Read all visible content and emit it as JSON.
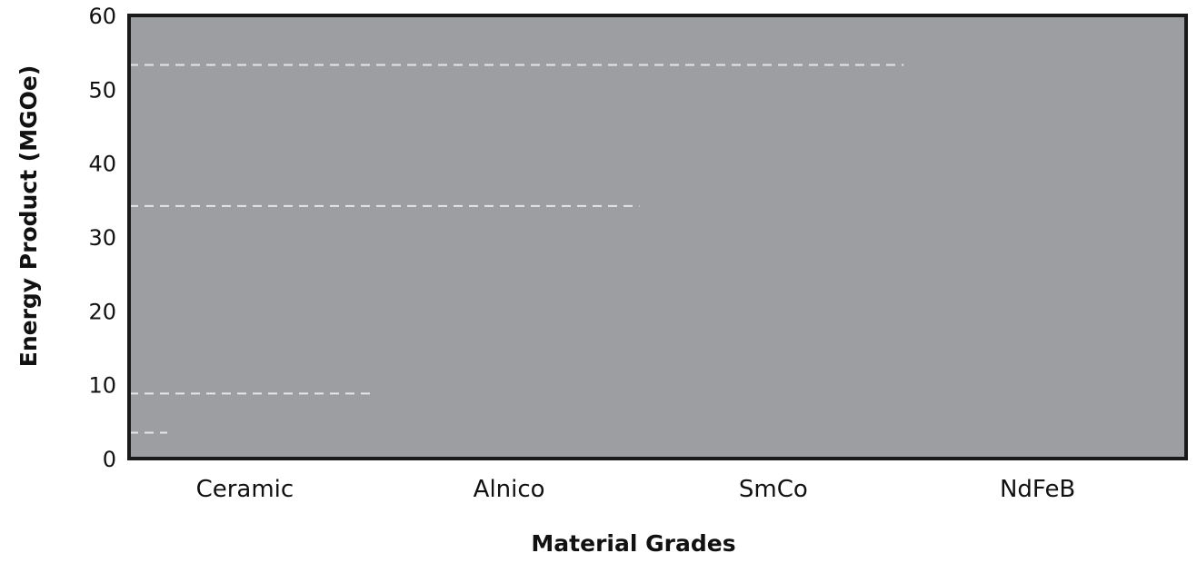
{
  "chart_data": {
    "type": "bar",
    "title": "",
    "xlabel": "Material Grades",
    "ylabel": "Energy Product (MGOe)",
    "categories": [
      "Ceramic",
      "Alnico",
      "SmCo",
      "NdFeB"
    ],
    "values": [
      0,
      0,
      0,
      0
    ],
    "ylim": [
      0,
      60
    ],
    "yticks": [
      0,
      10,
      20,
      30,
      40,
      50,
      60
    ],
    "grid": false,
    "legend": "none",
    "reference_lines": [
      {
        "value": 3.5,
        "from_category": "Ceramic",
        "to_category": "Ceramic",
        "span": "partial"
      },
      {
        "value": 8.8,
        "from_category": "Ceramic",
        "to_category": "Ceramic",
        "span": "full"
      },
      {
        "value": 34.2,
        "from_category": "Ceramic",
        "to_category": "Alnico",
        "span": "full"
      },
      {
        "value": 53.3,
        "from_category": "Ceramic",
        "to_category": "SmCo",
        "span": "full"
      }
    ],
    "colors": {
      "plot_background": "#9d9ea2",
      "frame": "#1a1a1a",
      "reference_line": "#e6e6e6",
      "text": "#111111"
    }
  }
}
